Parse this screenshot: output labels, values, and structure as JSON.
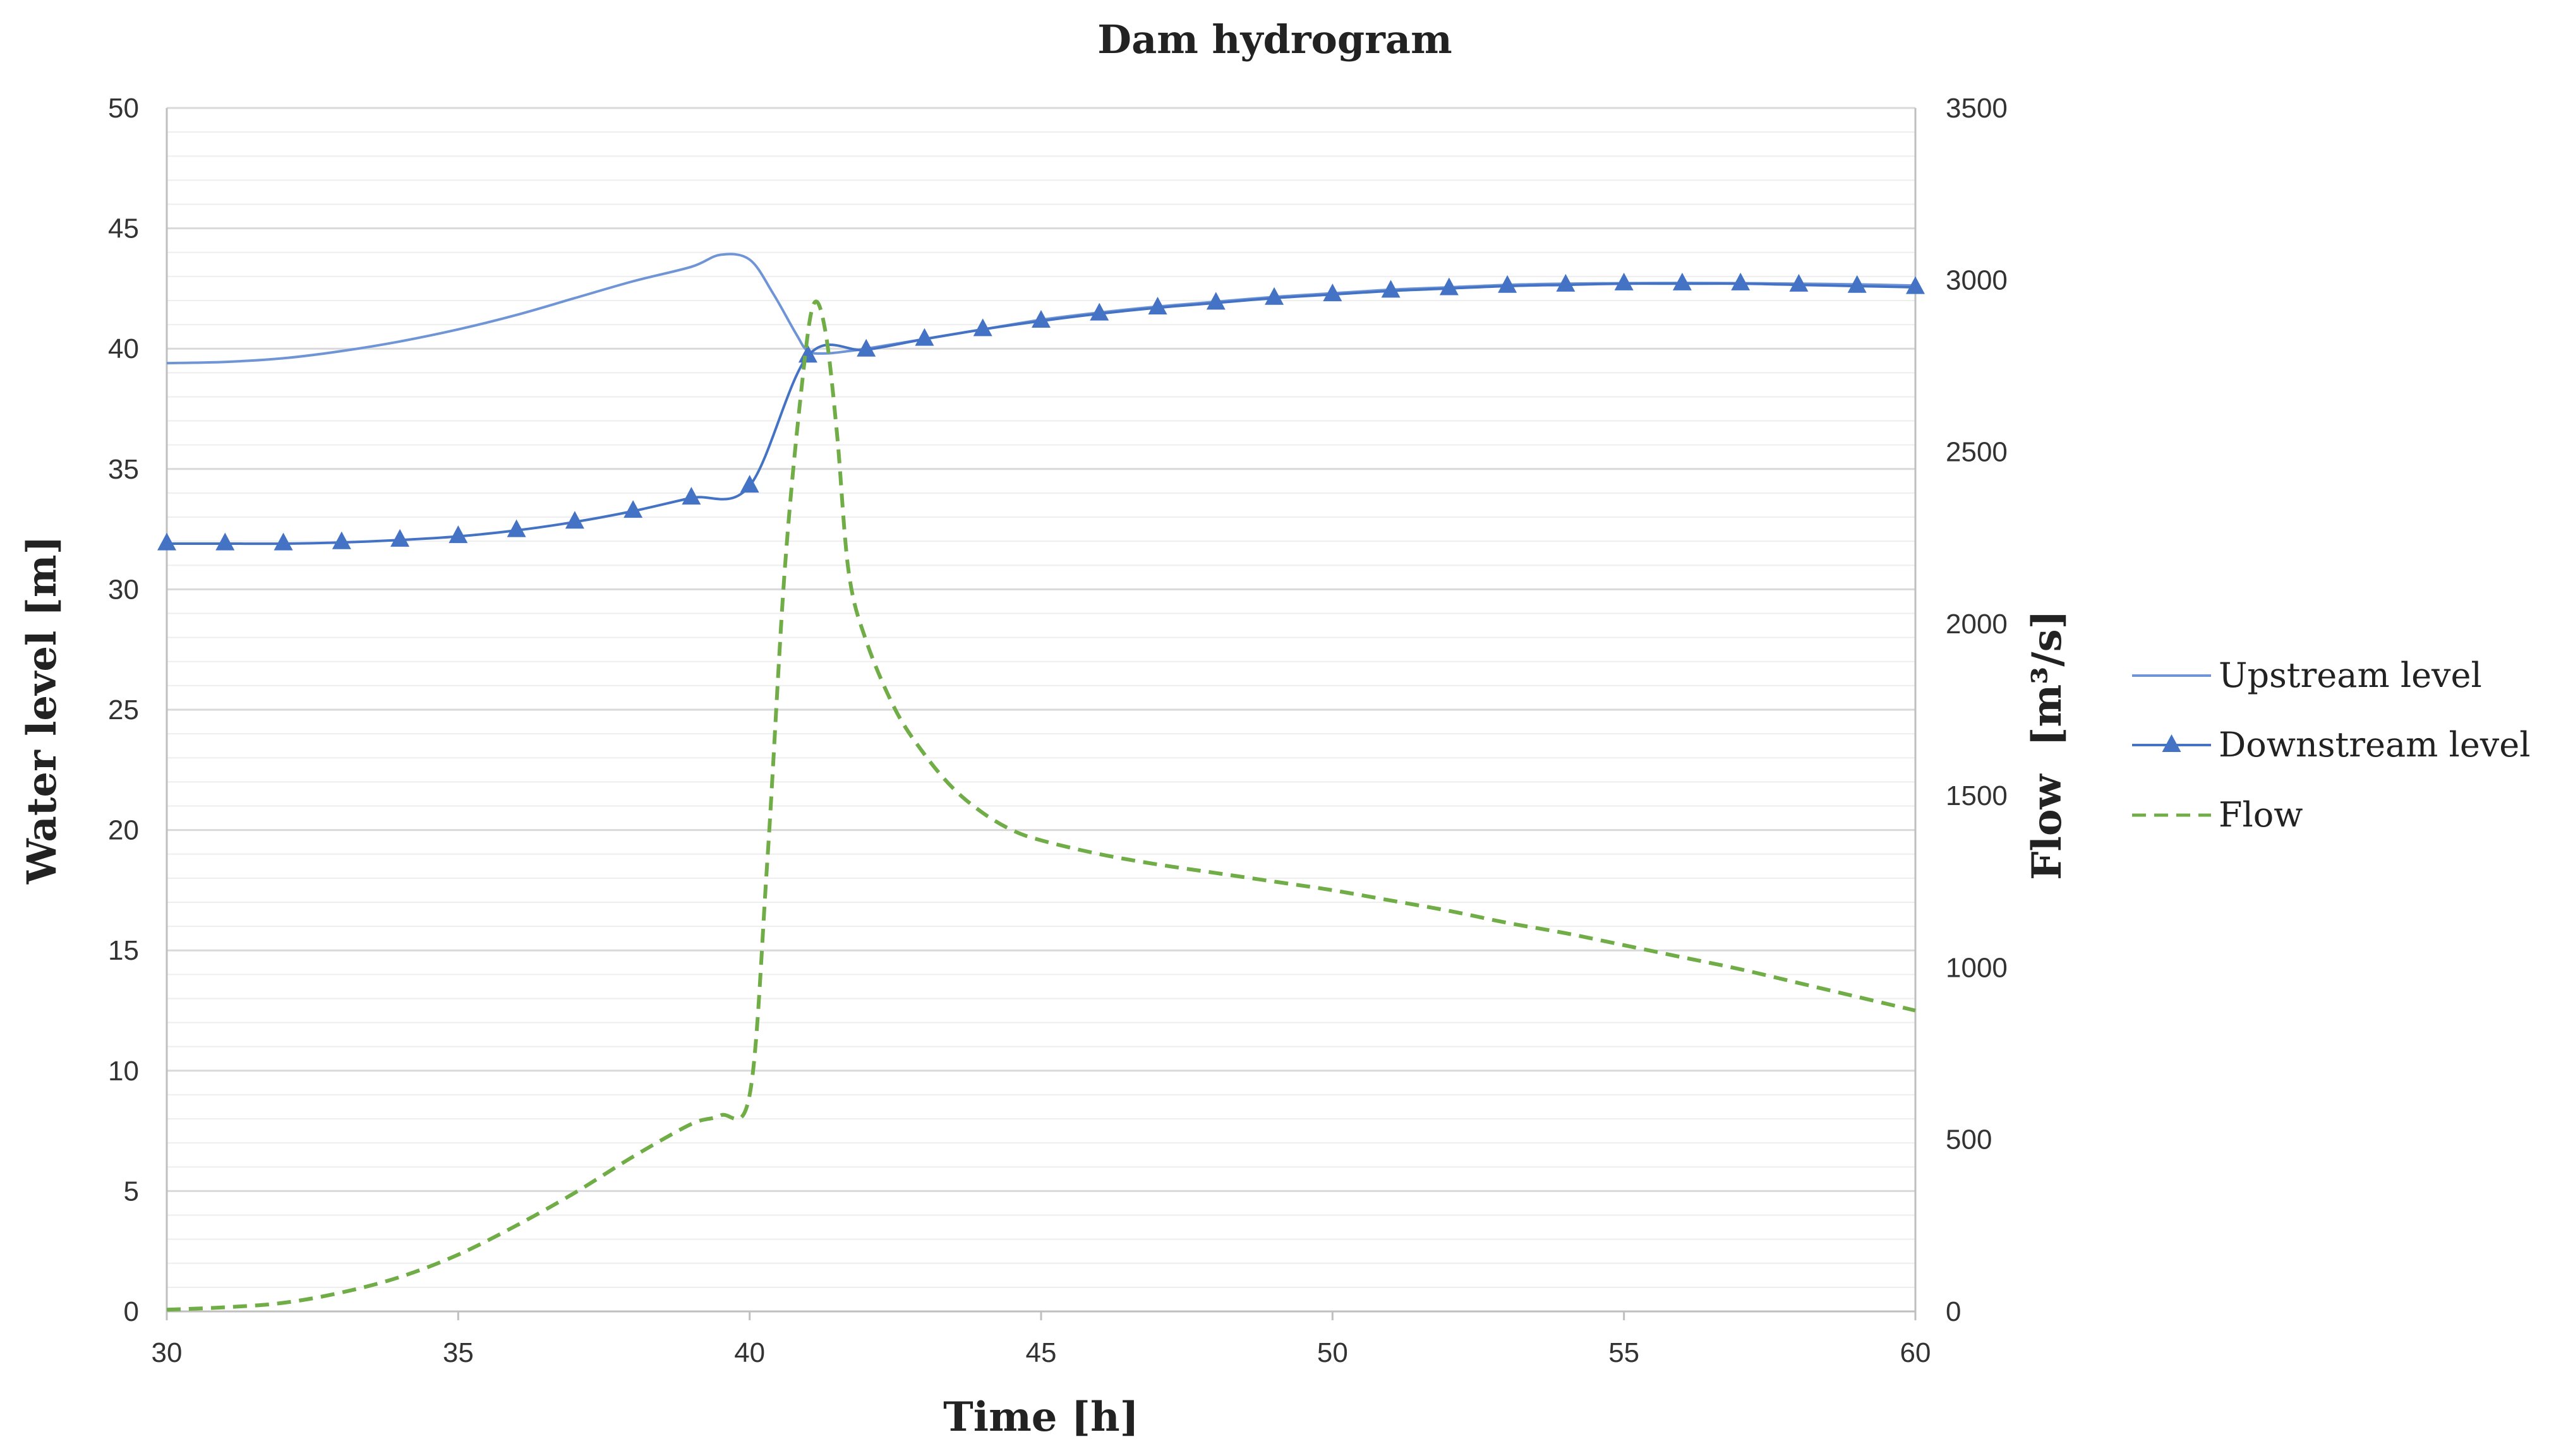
{
  "chart_data": {
    "type": "line",
    "title": "Dam hydrogram",
    "xlabel": "Time [h]",
    "ylabel": "Water level [m]",
    "y2label": "Flow  [m³/s]",
    "xlim": [
      30,
      60
    ],
    "ylim": [
      0,
      50
    ],
    "y2lim": [
      0,
      3500
    ],
    "xticks": [
      30,
      35,
      40,
      45,
      50,
      55,
      60
    ],
    "yticks": [
      0,
      5,
      10,
      15,
      20,
      25,
      30,
      35,
      40,
      45,
      50
    ],
    "y2ticks": [
      0,
      500,
      1000,
      1500,
      2000,
      2500,
      3000,
      3500
    ],
    "grid": true,
    "legend_position": "right",
    "series": [
      {
        "name": "Upstream level",
        "axis": "left",
        "color": "#6f95d6",
        "style": "solid",
        "marker": "none",
        "x": [
          30,
          31,
          32,
          33,
          34,
          35,
          36,
          37,
          38,
          39,
          39.5,
          40,
          40.4,
          40.8,
          41,
          41.3,
          41.7,
          42,
          43,
          44,
          45,
          46,
          47,
          48,
          49,
          50,
          51,
          52,
          53,
          54,
          55,
          56,
          57,
          58,
          59,
          60
        ],
        "values": [
          39.4,
          39.45,
          39.6,
          39.9,
          40.3,
          40.8,
          41.4,
          42.1,
          42.8,
          43.4,
          43.9,
          43.7,
          42.3,
          40.6,
          39.9,
          39.8,
          39.9,
          40.0,
          40.4,
          40.8,
          41.2,
          41.5,
          41.75,
          41.95,
          42.15,
          42.3,
          42.45,
          42.55,
          42.65,
          42.7,
          42.72,
          42.73,
          42.72,
          42.7,
          42.67,
          42.62
        ]
      },
      {
        "name": "Downstream level",
        "axis": "left",
        "color": "#4472c4",
        "style": "solid",
        "marker": "triangle",
        "x": [
          30,
          31,
          32,
          33,
          34,
          35,
          36,
          37,
          38,
          39,
          40,
          41,
          42,
          43,
          44,
          45,
          46,
          47,
          48,
          49,
          50,
          51,
          52,
          53,
          54,
          55,
          56,
          57,
          58,
          59,
          60
        ],
        "values": [
          31.9,
          31.9,
          31.9,
          31.95,
          32.05,
          32.2,
          32.45,
          32.8,
          33.25,
          33.8,
          34.3,
          39.7,
          39.95,
          40.4,
          40.8,
          41.15,
          41.45,
          41.7,
          41.9,
          42.1,
          42.25,
          42.4,
          42.5,
          42.6,
          42.65,
          42.7,
          42.7,
          42.7,
          42.65,
          42.6,
          42.55
        ]
      },
      {
        "name": "Flow",
        "axis": "right",
        "color": "#70ad47",
        "style": "dashed",
        "marker": "none",
        "x": [
          30,
          31,
          32,
          33,
          34,
          35,
          36,
          37,
          38,
          39,
          39.5,
          40,
          40.3,
          40.6,
          40.9,
          41.1,
          41.3,
          41.5,
          41.7,
          42,
          42.5,
          43,
          43.5,
          44,
          44.5,
          45,
          46,
          47,
          48,
          49,
          50,
          51,
          52,
          53,
          54,
          55,
          56,
          57,
          58,
          59,
          60
        ],
        "values": [
          5,
          12,
          25,
          55,
          100,
          165,
          250,
          345,
          450,
          545,
          570,
          630,
          1300,
          2150,
          2700,
          2930,
          2850,
          2550,
          2150,
          1950,
          1750,
          1620,
          1520,
          1450,
          1400,
          1370,
          1330,
          1300,
          1275,
          1250,
          1225,
          1195,
          1165,
          1130,
          1100,
          1065,
          1030,
          995,
          955,
          915,
          875
        ]
      }
    ]
  }
}
